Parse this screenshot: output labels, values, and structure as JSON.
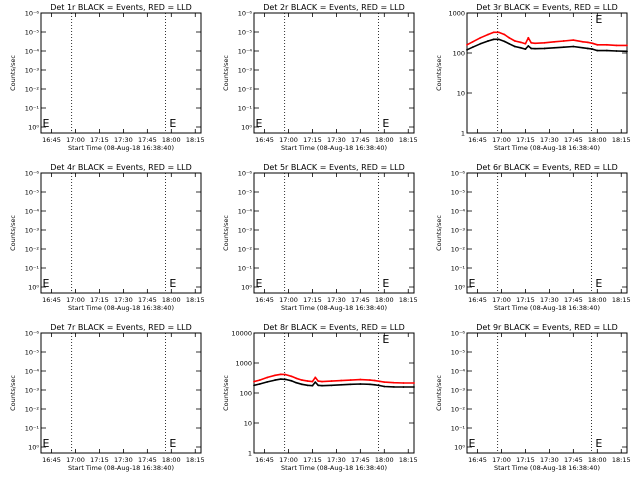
{
  "figure": {
    "panel_count": 9,
    "xlabel": "Start Time (08-Aug-18 16:38:40)",
    "ylabel": "Counts/sec",
    "x_tick_labels": [
      "16:45",
      "17:00",
      "17:15",
      "17:30",
      "17:45",
      "18:00",
      "18:15"
    ],
    "event_marker": "E",
    "colors": {
      "events": "#000000",
      "lld": "#ff0000",
      "axes": "#000000",
      "background": "#ffffff"
    }
  },
  "chart_data": [
    {
      "type": "line",
      "title": "Det 1r BLACK = Events, RED = LLD",
      "xlabel": "Start Time (08-Aug-18 16:38:40)",
      "ylabel": "Counts/sec",
      "y_scale": "log",
      "ylim": [
        0.5,
        10000
      ],
      "y_tick_labels": [
        "10⁰",
        "10⁻¹",
        "10⁻²",
        "10⁻³",
        "10⁻⁴",
        "10⁻⁵",
        "10⁻⁶"
      ],
      "x_tick_labels": [
        "16:45",
        "17:00",
        "17:15",
        "17:30",
        "17:45",
        "18:00",
        "18:15"
      ],
      "xlim": [
        16.64,
        18.31
      ],
      "dotted_lines": [
        16.96,
        17.94
      ],
      "event_markers": [
        {
          "x": 16.645,
          "label": "E"
        },
        {
          "x": 17.97,
          "label": "E"
        }
      ],
      "series": []
    },
    {
      "type": "line",
      "title": "Det 2r BLACK = Events, RED = LLD",
      "xlabel": "Start Time (08-Aug-18 16:38:40)",
      "ylabel": "Counts/sec",
      "y_scale": "log",
      "ylim": [
        0.5,
        10000
      ],
      "y_tick_labels": [
        "10⁰",
        "10⁻¹",
        "10⁻²",
        "10⁻³",
        "10⁻⁴",
        "10⁻⁵",
        "10⁻⁶"
      ],
      "x_tick_labels": [
        "16:45",
        "17:00",
        "17:15",
        "17:30",
        "17:45",
        "18:00",
        "18:15"
      ],
      "xlim": [
        16.64,
        18.31
      ],
      "dotted_lines": [
        16.96,
        17.94
      ],
      "event_markers": [
        {
          "x": 16.645,
          "label": "E"
        },
        {
          "x": 17.97,
          "label": "E"
        }
      ],
      "series": []
    },
    {
      "type": "line",
      "title": "Det 3r BLACK = Events, RED = LLD",
      "xlabel": "Start Time (08-Aug-18 16:38:40)",
      "ylabel": "Counts/sec",
      "y_scale": "log",
      "ylim": [
        1,
        1000
      ],
      "y_tick_labels": [
        "1",
        "10",
        "100",
        "1000"
      ],
      "y_ticks": [
        1,
        10,
        100,
        1000
      ],
      "x_tick_labels": [
        "16:45",
        "17:00",
        "17:15",
        "17:30",
        "17:45",
        "18:00",
        "18:15"
      ],
      "xlim": [
        16.64,
        18.31
      ],
      "dotted_lines": [
        16.96,
        17.94
      ],
      "event_markers": [
        {
          "x": 17.97,
          "label": "E"
        }
      ],
      "series": [
        {
          "color": "#ff0000",
          "x": [
            16.64,
            16.7,
            16.78,
            16.86,
            16.92,
            16.97,
            17.03,
            17.08,
            17.14,
            17.2,
            17.25,
            17.28,
            17.31,
            17.35,
            17.45,
            17.55,
            17.65,
            17.75,
            17.85,
            17.9,
            17.95,
            18.0,
            18.1,
            18.2,
            18.31
          ],
          "y": [
            160,
            190,
            240,
            290,
            330,
            330,
            290,
            240,
            200,
            185,
            170,
            240,
            180,
            175,
            180,
            190,
            200,
            210,
            190,
            185,
            175,
            160,
            160,
            155,
            155
          ]
        },
        {
          "color": "#000000",
          "x": [
            16.64,
            16.7,
            16.78,
            16.86,
            16.92,
            16.97,
            17.03,
            17.08,
            17.14,
            17.2,
            17.25,
            17.28,
            17.31,
            17.35,
            17.45,
            17.55,
            17.65,
            17.75,
            17.85,
            17.9,
            17.95,
            18.0,
            18.1,
            18.2,
            18.31
          ],
          "y": [
            120,
            140,
            170,
            200,
            220,
            220,
            195,
            170,
            145,
            135,
            125,
            150,
            130,
            128,
            130,
            135,
            140,
            145,
            135,
            130,
            125,
            115,
            115,
            112,
            110
          ]
        }
      ]
    },
    {
      "type": "line",
      "title": "Det 4r BLACK = Events, RED = LLD",
      "xlabel": "Start Time (08-Aug-18 16:38:40)",
      "ylabel": "Counts/sec",
      "y_scale": "log",
      "ylim": [
        0.5,
        10000
      ],
      "y_tick_labels": [
        "10⁰",
        "10⁻¹",
        "10⁻²",
        "10⁻³",
        "10⁻⁴",
        "10⁻⁵",
        "10⁻⁶"
      ],
      "x_tick_labels": [
        "16:45",
        "17:00",
        "17:15",
        "17:30",
        "17:45",
        "18:00",
        "18:15"
      ],
      "xlim": [
        16.64,
        18.31
      ],
      "dotted_lines": [
        16.96,
        17.94
      ],
      "event_markers": [
        {
          "x": 16.645,
          "label": "E"
        },
        {
          "x": 17.97,
          "label": "E"
        }
      ],
      "series": []
    },
    {
      "type": "line",
      "title": "Det 5r BLACK = Events, RED = LLD",
      "xlabel": "Start Time (08-Aug-18 16:38:40)",
      "ylabel": "Counts/sec",
      "y_scale": "log",
      "ylim": [
        0.5,
        10000
      ],
      "y_tick_labels": [
        "10⁰",
        "10⁻¹",
        "10⁻²",
        "10⁻³",
        "10⁻⁴",
        "10⁻⁵",
        "10⁻⁶"
      ],
      "x_tick_labels": [
        "16:45",
        "17:00",
        "17:15",
        "17:30",
        "17:45",
        "18:00",
        "18:15"
      ],
      "xlim": [
        16.64,
        18.31
      ],
      "dotted_lines": [
        16.96,
        17.94
      ],
      "event_markers": [
        {
          "x": 16.645,
          "label": "E"
        },
        {
          "x": 17.97,
          "label": "E"
        }
      ],
      "series": []
    },
    {
      "type": "line",
      "title": "Det 6r BLACK = Events, RED = LLD",
      "xlabel": "Start Time (08-Aug-18 16:38:40)",
      "ylabel": "Counts/sec",
      "y_scale": "log",
      "ylim": [
        0.5,
        10000
      ],
      "y_tick_labels": [
        "10⁰",
        "10⁻¹",
        "10⁻²",
        "10⁻³",
        "10⁻⁴",
        "10⁻⁵",
        "10⁻⁶"
      ],
      "x_tick_labels": [
        "16:45",
        "17:00",
        "17:15",
        "17:30",
        "17:45",
        "18:00",
        "18:15"
      ],
      "xlim": [
        16.64,
        18.31
      ],
      "dotted_lines": [
        16.96,
        17.94
      ],
      "event_markers": [
        {
          "x": 16.645,
          "label": "E"
        },
        {
          "x": 17.97,
          "label": "E"
        }
      ],
      "series": []
    },
    {
      "type": "line",
      "title": "Det 7r BLACK = Events, RED = LLD",
      "xlabel": "Start Time (08-Aug-18 16:38:40)",
      "ylabel": "Counts/sec",
      "y_scale": "log",
      "ylim": [
        0.5,
        10000
      ],
      "y_tick_labels": [
        "10⁰",
        "10⁻¹",
        "10⁻²",
        "10⁻³",
        "10⁻⁴",
        "10⁻⁵",
        "10⁻⁶"
      ],
      "x_tick_labels": [
        "16:45",
        "17:00",
        "17:15",
        "17:30",
        "17:45",
        "18:00",
        "18:15"
      ],
      "xlim": [
        16.64,
        18.31
      ],
      "dotted_lines": [
        16.96,
        17.94
      ],
      "event_markers": [
        {
          "x": 16.645,
          "label": "E"
        },
        {
          "x": 17.97,
          "label": "E"
        }
      ],
      "series": []
    },
    {
      "type": "line",
      "title": "Det 8r BLACK = Events, RED = LLD",
      "xlabel": "Start Time (08-Aug-18 16:38:40)",
      "ylabel": "Counts/sec",
      "y_scale": "log",
      "ylim": [
        1,
        10000
      ],
      "y_tick_labels": [
        "1",
        "10",
        "100",
        "1000",
        "10000"
      ],
      "y_ticks": [
        1,
        10,
        100,
        1000,
        10000
      ],
      "x_tick_labels": [
        "16:45",
        "17:00",
        "17:15",
        "17:30",
        "17:45",
        "18:00",
        "18:15"
      ],
      "xlim": [
        16.64,
        18.31
      ],
      "dotted_lines": [
        16.96,
        17.94
      ],
      "event_markers": [
        {
          "x": 17.97,
          "label": "E"
        }
      ],
      "series": [
        {
          "color": "#ff0000",
          "x": [
            16.64,
            16.7,
            16.78,
            16.86,
            16.92,
            16.97,
            17.03,
            17.08,
            17.14,
            17.2,
            17.25,
            17.28,
            17.31,
            17.35,
            17.45,
            17.55,
            17.65,
            17.75,
            17.85,
            17.9,
            17.95,
            18.0,
            18.1,
            18.2,
            18.31
          ],
          "y": [
            240,
            270,
            330,
            390,
            420,
            410,
            360,
            310,
            270,
            250,
            240,
            330,
            250,
            240,
            250,
            260,
            270,
            280,
            270,
            260,
            245,
            230,
            220,
            215,
            215
          ]
        },
        {
          "color": "#000000",
          "x": [
            16.64,
            16.7,
            16.78,
            16.86,
            16.92,
            16.97,
            17.03,
            17.08,
            17.14,
            17.2,
            17.25,
            17.28,
            17.31,
            17.35,
            17.45,
            17.55,
            17.65,
            17.75,
            17.85,
            17.9,
            17.95,
            18.0,
            18.1,
            18.2,
            18.31
          ],
          "y": [
            180,
            200,
            235,
            270,
            290,
            285,
            255,
            220,
            195,
            180,
            175,
            230,
            180,
            175,
            180,
            188,
            195,
            200,
            195,
            188,
            178,
            165,
            160,
            158,
            158
          ]
        }
      ]
    },
    {
      "type": "line",
      "title": "Det 9r BLACK = Events, RED = LLD",
      "xlabel": "Start Time (08-Aug-18 16:38:40)",
      "ylabel": "Counts/sec",
      "y_scale": "log",
      "ylim": [
        0.5,
        10000
      ],
      "y_tick_labels": [
        "10⁰",
        "10⁻¹",
        "10⁻²",
        "10⁻³",
        "10⁻⁴",
        "10⁻⁵",
        "10⁻⁶"
      ],
      "x_tick_labels": [
        "16:45",
        "17:00",
        "17:15",
        "17:30",
        "17:45",
        "18:00",
        "18:15"
      ],
      "xlim": [
        16.64,
        18.31
      ],
      "dotted_lines": [
        16.96,
        17.94
      ],
      "event_markers": [
        {
          "x": 16.645,
          "label": "E"
        },
        {
          "x": 17.97,
          "label": "E"
        }
      ],
      "series": []
    }
  ]
}
